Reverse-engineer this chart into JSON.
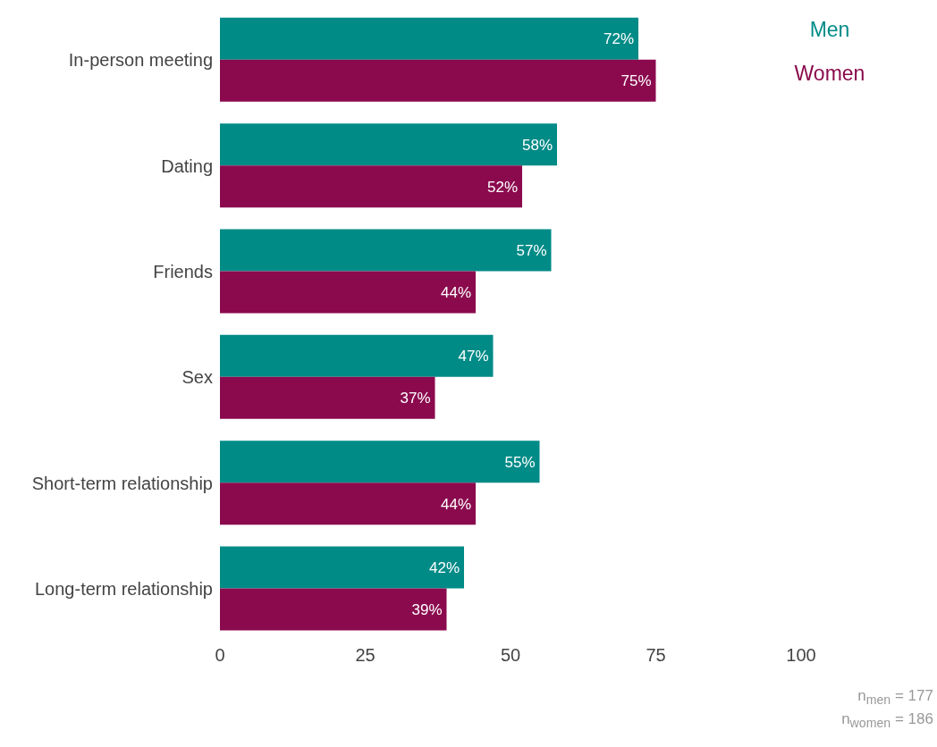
{
  "chart_data": {
    "type": "bar",
    "orientation": "horizontal",
    "categories": [
      "In-person meeting",
      "Dating",
      "Friends",
      "Sex",
      "Short-term relationship",
      "Long-term relationship"
    ],
    "series": [
      {
        "name": "Men",
        "color": "#008b87",
        "values": [
          72,
          58,
          57,
          47,
          55,
          42
        ],
        "value_labels": [
          "72%",
          "58%",
          "57%",
          "47%",
          "55%",
          "42%"
        ]
      },
      {
        "name": "Women",
        "color": "#8b0a4e",
        "values": [
          75,
          52,
          44,
          37,
          44,
          39
        ],
        "value_labels": [
          "75%",
          "52%",
          "44%",
          "37%",
          "44%",
          "39%"
        ]
      }
    ],
    "xlim": [
      0,
      100
    ],
    "xticks": [
      0,
      25,
      50,
      75,
      100
    ],
    "grid": false,
    "legend": "top right",
    "annotations": [
      "n$_{men}$ = 177",
      "n$_{women}$ = 186"
    ]
  }
}
